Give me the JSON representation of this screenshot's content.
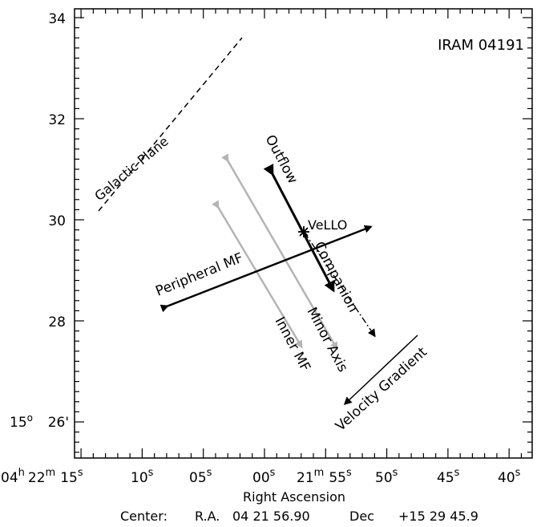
{
  "plot": {
    "field_label": "IRAM 04191",
    "xlabel": "Right Ascension",
    "center": {
      "prefix": "Center:",
      "ra_label": "R.A.",
      "ra_value": "04 21 56.90",
      "dec_label": "Dec",
      "dec_value": "+15 29 45.9"
    },
    "y_ticks": [
      {
        "value": "34",
        "pos": 34
      },
      {
        "value": "32",
        "pos": 32
      },
      {
        "value": "30",
        "pos": 30
      },
      {
        "value": "28",
        "pos": 28
      },
      {
        "value": "26'",
        "pos": 26,
        "deg": "15",
        "deg_sup": "o"
      }
    ],
    "x_ticks": [
      {
        "hours": "04",
        "h_sup": "h",
        "min": "22",
        "m_sup": "m",
        "sec": "15",
        "s_sup": "s"
      },
      {
        "sec": "10",
        "s_sup": "s"
      },
      {
        "sec": "05",
        "s_sup": "s"
      },
      {
        "sec": "00",
        "s_sup": "s"
      },
      {
        "min": "21",
        "m_sup": "m",
        "sec": "55",
        "s_sup": "s"
      },
      {
        "sec": "50",
        "s_sup": "s"
      },
      {
        "sec": "45",
        "s_sup": "s"
      },
      {
        "sec": "40",
        "s_sup": "s"
      }
    ]
  },
  "annotations": {
    "galactic_plane": "Galactic Plane",
    "outflow": "Outflow",
    "vello": "VeLLO",
    "companion": "Companion",
    "peripheral_mf": "Peripheral MF",
    "minor_axis": "Minor Axis",
    "inner_mf": "Inner MF",
    "velocity_gradient": "Velocity Gradient"
  },
  "colors": {
    "black_arrow": "#000000",
    "gray_arrow": "#b4b4b4"
  }
}
